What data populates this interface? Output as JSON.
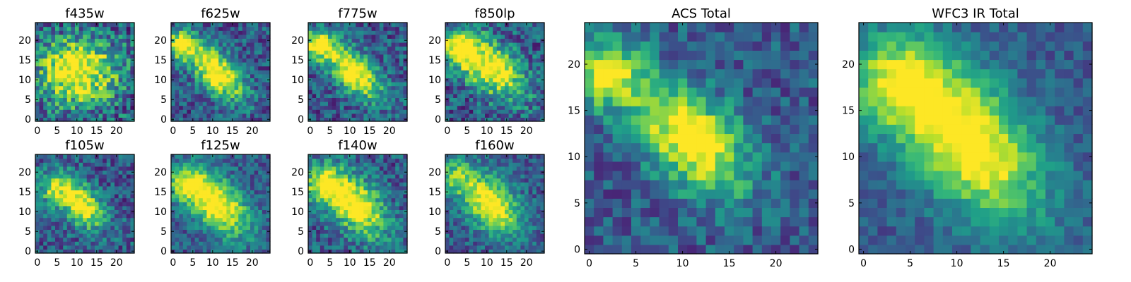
{
  "chart_data": [
    {
      "type": "heatmap",
      "title": "f435w",
      "xticks": [
        "0",
        "5",
        "10",
        "15",
        "20"
      ],
      "yticks": [
        "0",
        "5",
        "10",
        "15",
        "20"
      ],
      "grid_size": 25,
      "xlim": [
        -0.5,
        24.5
      ],
      "ylim": [
        -0.5,
        24.5
      ],
      "colormap": "viridis",
      "center": [
        11,
        12
      ],
      "extent": [
        7,
        6
      ],
      "angle": 0,
      "peak": 0.72,
      "noise": 0.3,
      "secondary": [
        7,
        13,
        0.55,
        0.2,
        4
      ]
    },
    {
      "type": "heatmap",
      "title": "f625w",
      "xticks": [
        "0",
        "5",
        "10",
        "15",
        "20"
      ],
      "yticks": [
        "0",
        "5",
        "10",
        "15",
        "20"
      ],
      "grid_size": 25,
      "xlim": [
        -0.5,
        24.5
      ],
      "ylim": [
        -0.5,
        24.5
      ],
      "colormap": "viridis",
      "center": [
        11,
        12
      ],
      "extent": [
        6,
        3
      ],
      "angle": -45,
      "peak": 0.85,
      "noise": 0.22,
      "secondary": [
        2,
        19,
        0.35,
        0.75,
        2.5
      ]
    },
    {
      "type": "heatmap",
      "title": "f775w",
      "xticks": [
        "0",
        "5",
        "10",
        "15",
        "20"
      ],
      "yticks": [
        "0",
        "5",
        "10",
        "15",
        "20"
      ],
      "grid_size": 25,
      "xlim": [
        -0.5,
        24.5
      ],
      "ylim": [
        -0.5,
        24.5
      ],
      "colormap": "viridis",
      "center": [
        11,
        12
      ],
      "extent": [
        6,
        3
      ],
      "angle": -45,
      "peak": 0.85,
      "noise": 0.22,
      "secondary": [
        2,
        19,
        0.35,
        0.8,
        2.5
      ]
    },
    {
      "type": "heatmap",
      "title": "f850lp",
      "xticks": [
        "0",
        "5",
        "10",
        "15",
        "20"
      ],
      "yticks": [
        "0",
        "5",
        "10",
        "15",
        "20"
      ],
      "grid_size": 25,
      "xlim": [
        -0.5,
        24.5
      ],
      "ylim": [
        -0.5,
        24.5
      ],
      "colormap": "viridis",
      "center": [
        11,
        13
      ],
      "extent": [
        7,
        4
      ],
      "angle": -40,
      "peak": 0.8,
      "noise": 0.25,
      "secondary": [
        3,
        18,
        0.45,
        0.7,
        3
      ]
    },
    {
      "type": "heatmap",
      "title": "f105w",
      "xticks": [
        "0",
        "5",
        "10",
        "15",
        "20"
      ],
      "yticks": [
        "0",
        "5",
        "10",
        "15",
        "20"
      ],
      "grid_size": 25,
      "xlim": [
        -0.5,
        24.5
      ],
      "ylim": [
        -0.5,
        24.5
      ],
      "colormap": "viridis",
      "center": [
        11,
        12
      ],
      "extent": [
        5,
        3
      ],
      "angle": -50,
      "peak": 0.8,
      "noise": 0.22,
      "secondary": [
        4,
        16,
        0.45,
        0.45,
        3
      ]
    },
    {
      "type": "heatmap",
      "title": "f125w",
      "xticks": [
        "0",
        "5",
        "10",
        "15",
        "20"
      ],
      "yticks": [
        "0",
        "5",
        "10",
        "15",
        "20"
      ],
      "grid_size": 25,
      "xlim": [
        -0.5,
        24.5
      ],
      "ylim": [
        -0.5,
        24.5
      ],
      "colormap": "viridis",
      "center": [
        11,
        12
      ],
      "extent": [
        7,
        4
      ],
      "angle": -45,
      "peak": 0.85,
      "noise": 0.18,
      "secondary": [
        3,
        17,
        0.45,
        0.5,
        3
      ]
    },
    {
      "type": "heatmap",
      "title": "f140w",
      "xticks": [
        "0",
        "5",
        "10",
        "15",
        "20"
      ],
      "yticks": [
        "0",
        "5",
        "10",
        "15",
        "20"
      ],
      "grid_size": 25,
      "xlim": [
        -0.5,
        24.5
      ],
      "ylim": [
        -0.5,
        24.5
      ],
      "colormap": "viridis",
      "center": [
        11,
        12
      ],
      "extent": [
        7,
        4
      ],
      "angle": -45,
      "peak": 0.85,
      "noise": 0.22,
      "secondary": [
        3,
        17,
        0.45,
        0.55,
        3
      ]
    },
    {
      "type": "heatmap",
      "title": "f160w",
      "xticks": [
        "0",
        "5",
        "10",
        "15",
        "20"
      ],
      "yticks": [
        "0",
        "5",
        "10",
        "15",
        "20"
      ],
      "grid_size": 25,
      "xlim": [
        -0.5,
        24.5
      ],
      "ylim": [
        -0.5,
        24.5
      ],
      "colormap": "viridis",
      "center": [
        11,
        12
      ],
      "extent": [
        6,
        4
      ],
      "angle": -50,
      "peak": 0.82,
      "noise": 0.18,
      "secondary": [
        2,
        19,
        0.45,
        0.45,
        3
      ]
    },
    {
      "type": "heatmap",
      "title": "ACS Total",
      "xticks": [
        "0",
        "5",
        "10",
        "15",
        "20"
      ],
      "yticks": [
        "0",
        "5",
        "10",
        "15",
        "20"
      ],
      "grid_size": 25,
      "xlim": [
        -0.5,
        24.5
      ],
      "ylim": [
        -0.5,
        24.5
      ],
      "colormap": "viridis",
      "center": [
        11,
        12
      ],
      "extent": [
        5,
        3
      ],
      "angle": -45,
      "peak": 0.85,
      "noise": 0.18,
      "secondary": [
        2,
        19,
        0.4,
        0.75,
        2.5
      ]
    },
    {
      "type": "heatmap",
      "title": "WFC3 IR Total",
      "xticks": [
        "0",
        "5",
        "10",
        "15",
        "20"
      ],
      "yticks": [
        "0",
        "5",
        "10",
        "15",
        "20"
      ],
      "grid_size": 25,
      "xlim": [
        -0.5,
        24.5
      ],
      "ylim": [
        -0.5,
        24.5
      ],
      "colormap": "viridis",
      "center": [
        11,
        12
      ],
      "extent": [
        7,
        4
      ],
      "angle": -50,
      "peak": 0.85,
      "noise": 0.12,
      "secondary": [
        3,
        18,
        0.45,
        0.5,
        3.5
      ]
    }
  ]
}
